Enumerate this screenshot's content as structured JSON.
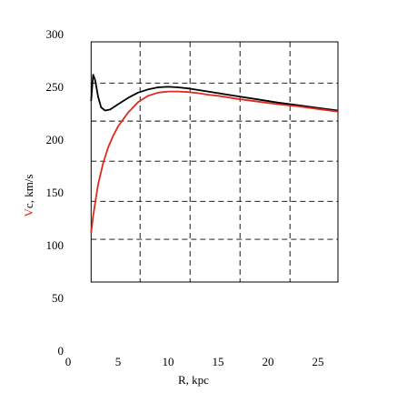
{
  "chart_data": {
    "type": "line",
    "xlabel": "R, kpc",
    "ylabel": {
      "prefix": "V",
      "suffix": "c, km/s"
    },
    "xlim": [
      0,
      27
    ],
    "ylim": [
      0,
      300
    ],
    "grid": true,
    "xticks": [
      0,
      5,
      10,
      15,
      20,
      25
    ],
    "yticks": [
      0,
      50,
      100,
      150,
      200,
      250,
      300
    ],
    "grid_x": [
      7.2,
      12.2,
      17.2,
      22.2
    ],
    "grid_y": [
      106,
      142,
      180,
      218,
      254
    ],
    "frame": {
      "x": [
        2.3,
        27
      ],
      "y": [
        0,
        255
      ]
    },
    "series": [
      {
        "color": "#000000",
        "x": [
          2.3,
          2.5,
          2.7,
          3.0,
          3.3,
          3.7,
          4.2,
          5.0,
          6.0,
          7.0,
          8.0,
          9.0,
          10.0,
          11.0,
          12.0,
          13.0,
          14.0,
          15.0,
          17.0,
          19.0,
          21.0,
          23.0,
          25.0,
          27.0
        ],
        "y": [
          237,
          262,
          257,
          241,
          231,
          228,
          229,
          234,
          240,
          245,
          248,
          250,
          250.5,
          250,
          249,
          247.5,
          246,
          244.5,
          241.5,
          238.5,
          235.5,
          233,
          230.5,
          228
        ]
      },
      {
        "color": "#e0291f",
        "x": [
          2.3,
          2.5,
          3.0,
          3.5,
          4.0,
          4.5,
          5.0,
          6.0,
          7.0,
          8.0,
          9.0,
          10.0,
          11.0,
          12.0,
          13.0,
          14.0,
          15.0,
          17.0,
          19.0,
          21.0,
          23.0,
          25.0,
          27.0
        ],
        "y": [
          112,
          128,
          158,
          178,
          193,
          204,
          213,
          226,
          236,
          242,
          245,
          246,
          246,
          245.5,
          244.5,
          243,
          242,
          239,
          236.5,
          234,
          232,
          229.5,
          227
        ]
      }
    ]
  }
}
